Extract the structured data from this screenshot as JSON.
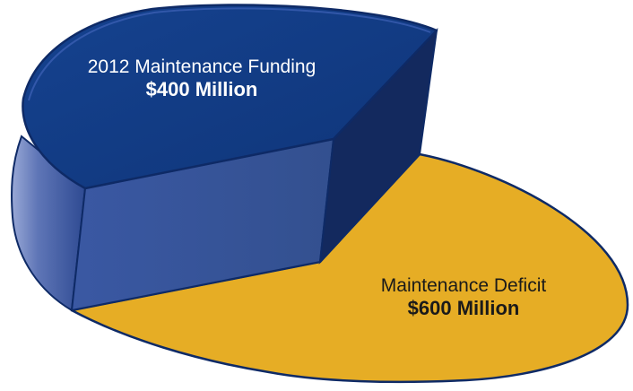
{
  "chart_data": {
    "type": "pie",
    "slices": [
      {
        "label": "2012 Maintenance Funding",
        "value_text": "$400 Million",
        "value": 400,
        "unit": "Million",
        "color": "#123a85"
      },
      {
        "label": "Maintenance Deficit",
        "value_text": "$600 Million",
        "value": 600,
        "unit": "Million",
        "color": "#e6ad25"
      }
    ],
    "style": "3d-exploded"
  }
}
